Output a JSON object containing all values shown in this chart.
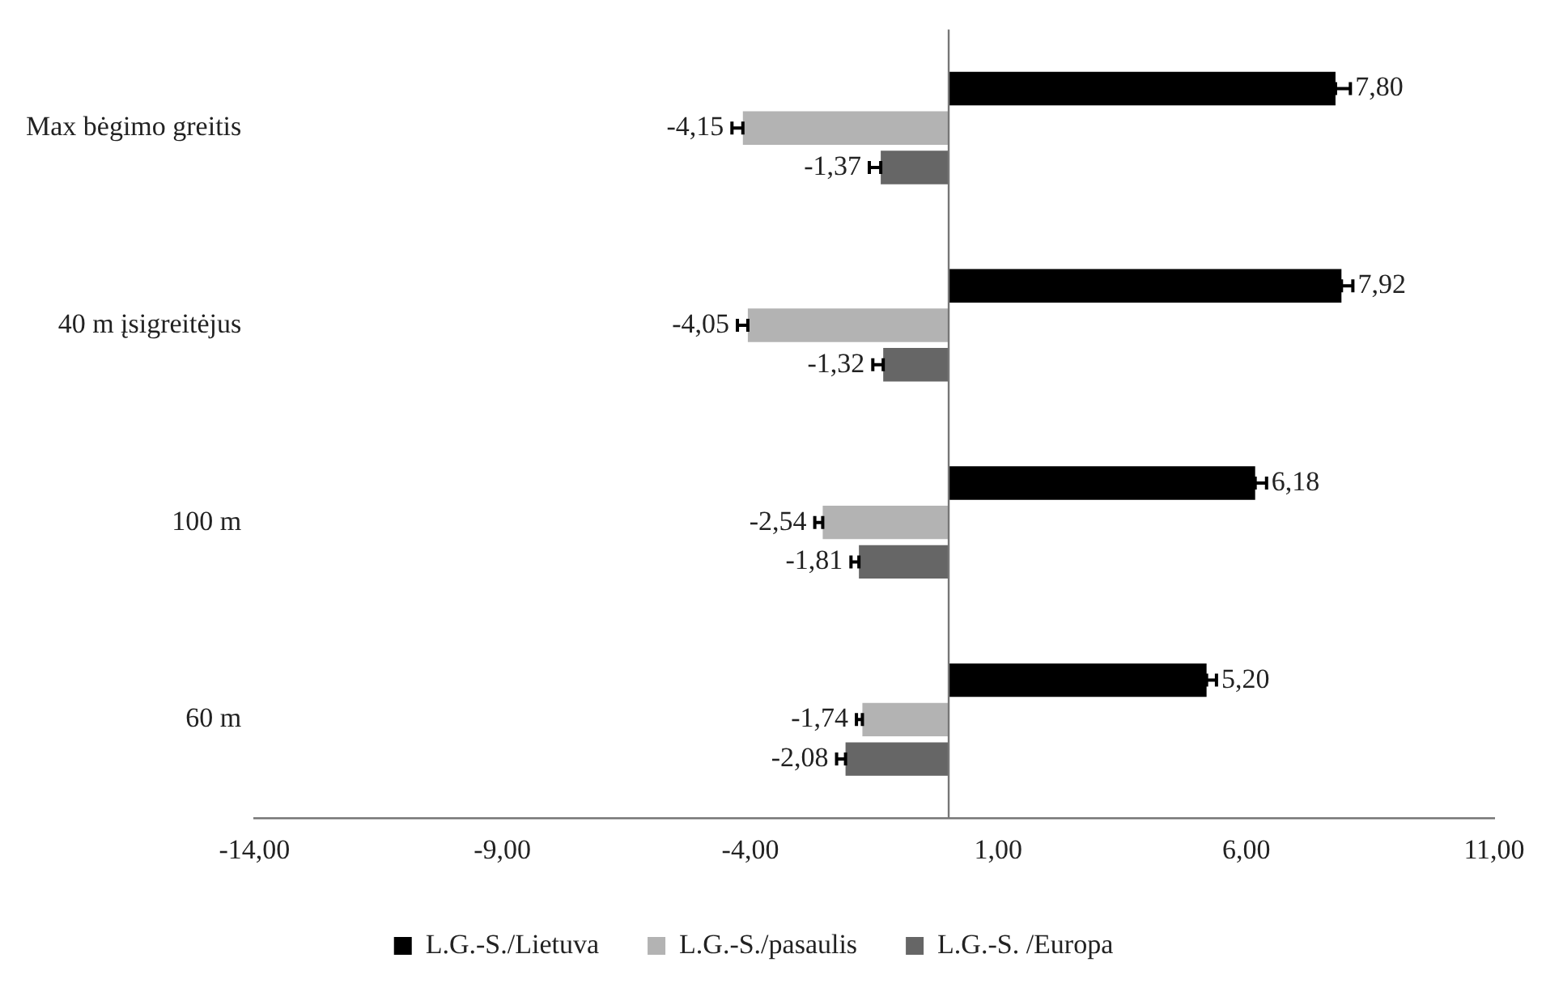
{
  "chart_data": {
    "type": "bar",
    "orientation": "horizontal",
    "categories": [
      "Max bėgimo greitis",
      "40 m įsigreitėjus",
      "100 m",
      "60 m"
    ],
    "series": [
      {
        "name": "L.G.-S./Lietuva",
        "color": "#000000",
        "values": [
          7.8,
          7.92,
          6.18,
          5.2
        ],
        "value_labels": [
          "7,80",
          "7,92",
          "6,18",
          "5,20"
        ],
        "errors": [
          [
            7.8,
            8.1
          ],
          [
            7.92,
            8.15
          ],
          [
            6.18,
            6.41
          ],
          [
            5.2,
            5.4
          ]
        ]
      },
      {
        "name": "L.G.-S./pasaulis",
        "color": "#b3b3b3",
        "values": [
          -4.15,
          -4.05,
          -2.54,
          -1.74
        ],
        "value_labels": [
          "-4,15",
          "-4,05",
          "-2,54",
          "-1,74"
        ],
        "errors": [
          [
            -4.37,
            -4.15
          ],
          [
            -4.26,
            -4.05
          ],
          [
            -2.7,
            -2.54
          ],
          [
            -1.86,
            -1.74
          ]
        ]
      },
      {
        "name": "L.G.-S. /Europa",
        "color": "#666666",
        "values": [
          -1.37,
          -1.32,
          -1.81,
          -2.08
        ],
        "value_labels": [
          "-1,37",
          "-1,32",
          "-1,81",
          "-2,08"
        ],
        "errors": [
          [
            -1.6,
            -1.37
          ],
          [
            -1.53,
            -1.32
          ],
          [
            -1.97,
            -1.81
          ],
          [
            -2.26,
            -2.08
          ]
        ]
      }
    ],
    "xlim": [
      -14,
      11
    ],
    "xticks": [
      {
        "value": -14,
        "label": "-14,00"
      },
      {
        "value": -9,
        "label": "-9,00"
      },
      {
        "value": -4,
        "label": "-4,00"
      },
      {
        "value": 1,
        "label": "1,00"
      },
      {
        "value": 6,
        "label": "6,00"
      },
      {
        "value": 11,
        "label": "11,00"
      }
    ],
    "grid": false,
    "legend": "bottom"
  }
}
